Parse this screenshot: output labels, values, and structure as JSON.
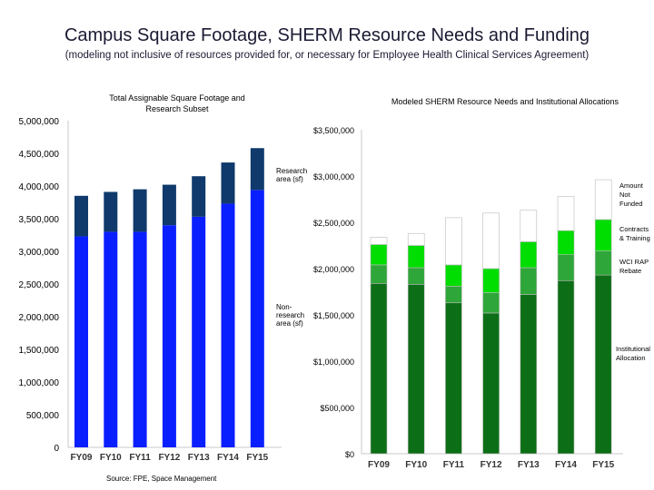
{
  "title": "Campus Square Footage, SHERM Resource Needs and Funding",
  "subtitle": "(modeling not inclusive of resources provided for, or necessary for Employee Health Clinical Services Agreement)",
  "source": "Source: FPE, Space Management",
  "colors": {
    "research": "#0f3a6b",
    "nonresearch": "#0a1fff",
    "amount_not_funded": "#ffffff",
    "contracts_training": "#00dd00",
    "wci_rap_rebate": "#2fa63a",
    "institutional_allocation": "#0c6e16"
  },
  "chart_data": [
    {
      "type": "bar",
      "stacked": true,
      "title": "Total Assignable Square Footage and Research Subset",
      "categories": [
        "FY09",
        "FY10",
        "FY11",
        "FY12",
        "FY13",
        "FY14",
        "FY15"
      ],
      "y_ticks": [
        "0",
        "500,000",
        "1,000,000",
        "1,500,000",
        "2,000,000",
        "2,500,000",
        "3,000,000",
        "3,500,000",
        "4,000,000",
        "4,500,000",
        "5,000,000"
      ],
      "ylim": [
        0,
        5000000
      ],
      "grid": false,
      "series": [
        {
          "name": "Non-research area (sf)",
          "color": "#0a1fff",
          "values": [
            3230000,
            3300000,
            3300000,
            3400000,
            3530000,
            3730000,
            3940000
          ]
        },
        {
          "name": "Research area (sf)",
          "color": "#0f3a6b",
          "values": [
            620000,
            610000,
            650000,
            620000,
            620000,
            630000,
            640000
          ]
        }
      ],
      "annotations": {
        "research": "Research area (sf)",
        "nonresearch": "Non-research area (sf)"
      }
    },
    {
      "type": "bar",
      "stacked": true,
      "title": "Modeled SHERM Resource Needs and Institutional Allocations",
      "categories": [
        "FY09",
        "FY10",
        "FY11",
        "FY12",
        "FY13",
        "FY14",
        "FY15"
      ],
      "y_ticks": [
        "$0",
        "$500,000",
        "$1,000,000",
        "$1,500,000",
        "$2,000,000",
        "$2,500,000",
        "$3,000,000",
        "$3,500,000"
      ],
      "ylim": [
        0,
        3500000
      ],
      "grid": false,
      "series": [
        {
          "name": "Institutional Allocation",
          "color": "#0c6e16",
          "values": [
            1840000,
            1830000,
            1630000,
            1520000,
            1720000,
            1870000,
            1930000
          ]
        },
        {
          "name": "WCI RAP Rebate",
          "color": "#2fa63a",
          "values": [
            200000,
            180000,
            180000,
            220000,
            290000,
            280000,
            260000
          ]
        },
        {
          "name": "Contracts & Training",
          "color": "#00dd00",
          "values": [
            220000,
            240000,
            230000,
            260000,
            280000,
            260000,
            340000
          ]
        },
        {
          "name": "Amount Not Funded",
          "color": "#ffffff",
          "values": [
            80000,
            130000,
            510000,
            600000,
            340000,
            370000,
            430000
          ]
        }
      ],
      "legend": {
        "amount_not_funded": "Amount Not Funded",
        "contracts_training": "Contracts & Training",
        "wci_rap_rebate": "WCI RAP Rebate",
        "institutional_allocation": "Institutional Allocation"
      }
    }
  ]
}
